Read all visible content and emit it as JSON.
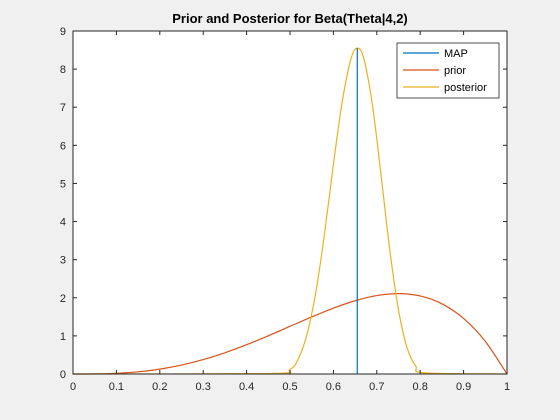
{
  "chart_data": {
    "type": "line",
    "title": "Prior and Posterior for Beta(Theta|4,2)",
    "xlabel": "",
    "ylabel": "",
    "xlim": [
      0,
      1
    ],
    "ylim": [
      0,
      9
    ],
    "xticks": [
      "0",
      "0.1",
      "0.2",
      "0.3",
      "0.4",
      "0.5",
      "0.6",
      "0.7",
      "0.8",
      "0.9",
      "1"
    ],
    "yticks": [
      "0",
      "1",
      "2",
      "3",
      "4",
      "5",
      "6",
      "7",
      "8",
      "9"
    ],
    "grid": false,
    "legend_position": "top-right",
    "series": [
      {
        "name": "MAP",
        "color": "#0072bd",
        "kind": "vertical-line",
        "x": [
          0.655,
          0.655
        ],
        "y": [
          0,
          8.55
        ]
      },
      {
        "name": "prior",
        "color": "#d95319",
        "kind": "curve",
        "x": [
          0,
          0.05,
          0.1,
          0.15,
          0.2,
          0.25,
          0.3,
          0.35,
          0.4,
          0.45,
          0.5,
          0.55,
          0.6,
          0.65,
          0.7,
          0.75,
          0.8,
          0.85,
          0.9,
          0.95,
          1.0
        ],
        "y": [
          0,
          0.0024,
          0.018,
          0.0574,
          0.128,
          0.2344,
          0.378,
          0.5574,
          0.768,
          1.0024,
          1.25,
          1.4974,
          1.728,
          1.9224,
          2.058,
          2.1094,
          2.048,
          1.8424,
          1.458,
          0.8574,
          0
        ]
      },
      {
        "name": "posterior",
        "color": "#edb120",
        "kind": "curve",
        "x": [
          0,
          0.45,
          0.5,
          0.52,
          0.54,
          0.56,
          0.58,
          0.6,
          0.62,
          0.64,
          0.655,
          0.67,
          0.69,
          0.71,
          0.73,
          0.75,
          0.77,
          0.79,
          0.81,
          1.0
        ],
        "y": [
          0,
          0.01,
          0.12,
          0.42,
          1.08,
          2.18,
          3.72,
          5.5,
          7.12,
          8.25,
          8.55,
          8.28,
          7.05,
          5.2,
          3.25,
          1.68,
          0.68,
          0.2,
          0.03,
          0
        ]
      }
    ]
  }
}
